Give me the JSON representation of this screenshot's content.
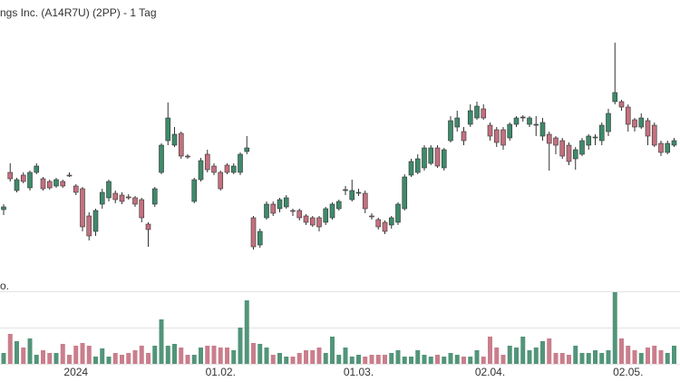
{
  "chart_data": {
    "type": "candlestick",
    "title": "ngs Inc. (A14R7U) (2PP) - 1 Tag",
    "up_color": "#3f8a6b",
    "down_color": "#c4707f",
    "wick_color": "#333333",
    "categories": [
      null,
      null,
      null,
      null,
      null,
      null,
      null,
      null,
      null,
      null,
      null,
      "2024",
      null,
      null,
      null,
      null,
      null,
      null,
      null,
      null,
      null,
      null,
      null,
      null,
      null,
      null,
      null,
      null,
      null,
      null,
      null,
      null,
      null,
      "01.02.",
      null,
      null,
      null,
      null,
      null,
      null,
      null,
      null,
      null,
      null,
      null,
      null,
      null,
      null,
      null,
      null,
      null,
      null,
      null,
      null,
      "01.03.",
      null,
      null,
      null,
      null,
      null,
      null,
      null,
      null,
      null,
      null,
      null,
      null,
      null,
      null,
      null,
      null,
      null,
      null,
      null,
      "02.04.",
      null,
      null,
      null,
      null,
      null,
      null,
      null,
      null,
      null,
      null,
      null,
      null,
      null,
      null,
      null,
      null,
      null,
      null,
      null,
      null,
      "02.05.",
      null,
      null,
      null,
      null,
      null,
      null,
      null
    ],
    "open": [
      69,
      110,
      90,
      107,
      93,
      110,
      103,
      100,
      95,
      100,
      107,
      95,
      92,
      62,
      45,
      75,
      82,
      87,
      85,
      83,
      82,
      80,
      53,
      75,
      110,
      145,
      140,
      153,
      128,
      78,
      102,
      130,
      117,
      110,
      118,
      110,
      110,
      133,
      60,
      30,
      60,
      75,
      70,
      72,
      68,
      68,
      62,
      60,
      60,
      55,
      60,
      70,
      90,
      80,
      87,
      87,
      62,
      58,
      55,
      52,
      55,
      70,
      107,
      110,
      115,
      120,
      137,
      115,
      145,
      160,
      155,
      163,
      170,
      180,
      162,
      157,
      157,
      148,
      163,
      170,
      163,
      162,
      150,
      152,
      148,
      145,
      140,
      125,
      130,
      140,
      148,
      145,
      155,
      188,
      188,
      182,
      168,
      160,
      167,
      162,
      142,
      132,
      140
    ],
    "high": [
      75,
      120,
      104,
      110,
      112,
      120,
      105,
      102,
      104,
      102,
      110,
      97,
      94,
      66,
      70,
      92,
      102,
      90,
      88,
      86,
      84,
      82,
      55,
      94,
      142,
      187,
      160,
      155,
      130,
      104,
      126,
      135,
      120,
      112,
      120,
      120,
      132,
      150,
      62,
      48,
      78,
      78,
      82,
      85,
      70,
      70,
      64,
      62,
      62,
      72,
      77,
      80,
      95,
      102,
      92,
      90,
      65,
      60,
      57,
      62,
      77,
      108,
      125,
      130,
      140,
      140,
      140,
      137,
      172,
      178,
      160,
      185,
      188,
      185,
      165,
      160,
      160,
      165,
      172,
      173,
      172,
      172,
      170,
      155,
      150,
      148,
      143,
      138,
      148,
      152,
      152,
      165,
      180,
      253,
      190,
      185,
      170,
      175,
      170,
      165,
      145,
      145,
      148
    ],
    "low": [
      63,
      100,
      88,
      98,
      90,
      108,
      90,
      91,
      93,
      93,
      105,
      85,
      45,
      35,
      40,
      70,
      78,
      76,
      75,
      80,
      72,
      55,
      28,
      72,
      108,
      140,
      138,
      125,
      125,
      76,
      100,
      110,
      107,
      90,
      108,
      108,
      107,
      130,
      25,
      27,
      58,
      62,
      66,
      70,
      62,
      57,
      52,
      50,
      45,
      52,
      58,
      68,
      85,
      78,
      84,
      65,
      58,
      47,
      42,
      48,
      52,
      68,
      105,
      108,
      112,
      118,
      115,
      112,
      143,
      155,
      140,
      160,
      168,
      168,
      145,
      138,
      135,
      145,
      160,
      166,
      160,
      150,
      145,
      112,
      130,
      125,
      118,
      113,
      128,
      135,
      140,
      140,
      150,
      185,
      178,
      155,
      155,
      158,
      140,
      138,
      128,
      130,
      138
    ],
    "close": [
      72,
      103,
      102,
      100,
      110,
      117,
      92,
      93,
      102,
      95,
      106,
      88,
      50,
      40,
      68,
      88,
      100,
      80,
      78,
      82,
      75,
      60,
      47,
      92,
      140,
      170,
      152,
      128,
      127,
      102,
      123,
      113,
      110,
      92,
      110,
      117,
      130,
      137,
      28,
      45,
      75,
      65,
      80,
      82,
      67,
      60,
      55,
      52,
      50,
      70,
      75,
      78,
      91,
      90,
      88,
      70,
      61,
      50,
      45,
      60,
      75,
      105,
      122,
      125,
      137,
      137,
      117,
      135,
      167,
      170,
      145,
      178,
      183,
      170,
      150,
      143,
      140,
      163,
      170,
      171,
      170,
      163,
      165,
      142,
      140,
      128,
      122,
      135,
      145,
      150,
      149,
      162,
      175,
      198,
      182,
      163,
      160,
      170,
      150,
      140,
      132,
      142,
      145
    ],
    "ylim": [
      0,
      300
    ],
    "volume": {
      "label": "o.",
      "ylim": [
        0,
        80
      ],
      "values": [
        12,
        33,
        25,
        18,
        28,
        10,
        15,
        12,
        12,
        22,
        10,
        20,
        23,
        20,
        8,
        17,
        8,
        12,
        10,
        12,
        15,
        20,
        12,
        20,
        49,
        20,
        22,
        18,
        10,
        10,
        18,
        20,
        20,
        18,
        18,
        15,
        40,
        70,
        23,
        22,
        18,
        10,
        12,
        8,
        8,
        12,
        15,
        15,
        18,
        12,
        30,
        10,
        18,
        8,
        10,
        8,
        10,
        10,
        10,
        12,
        15,
        8,
        8,
        15,
        10,
        8,
        10,
        8,
        12,
        10,
        8,
        8,
        15,
        8,
        30,
        18,
        10,
        20,
        18,
        30,
        15,
        18,
        25,
        28,
        12,
        12,
        10,
        20,
        12,
        12,
        15,
        12,
        15,
        79,
        28,
        20,
        15,
        12,
        18,
        20,
        15,
        12,
        20
      ]
    }
  }
}
